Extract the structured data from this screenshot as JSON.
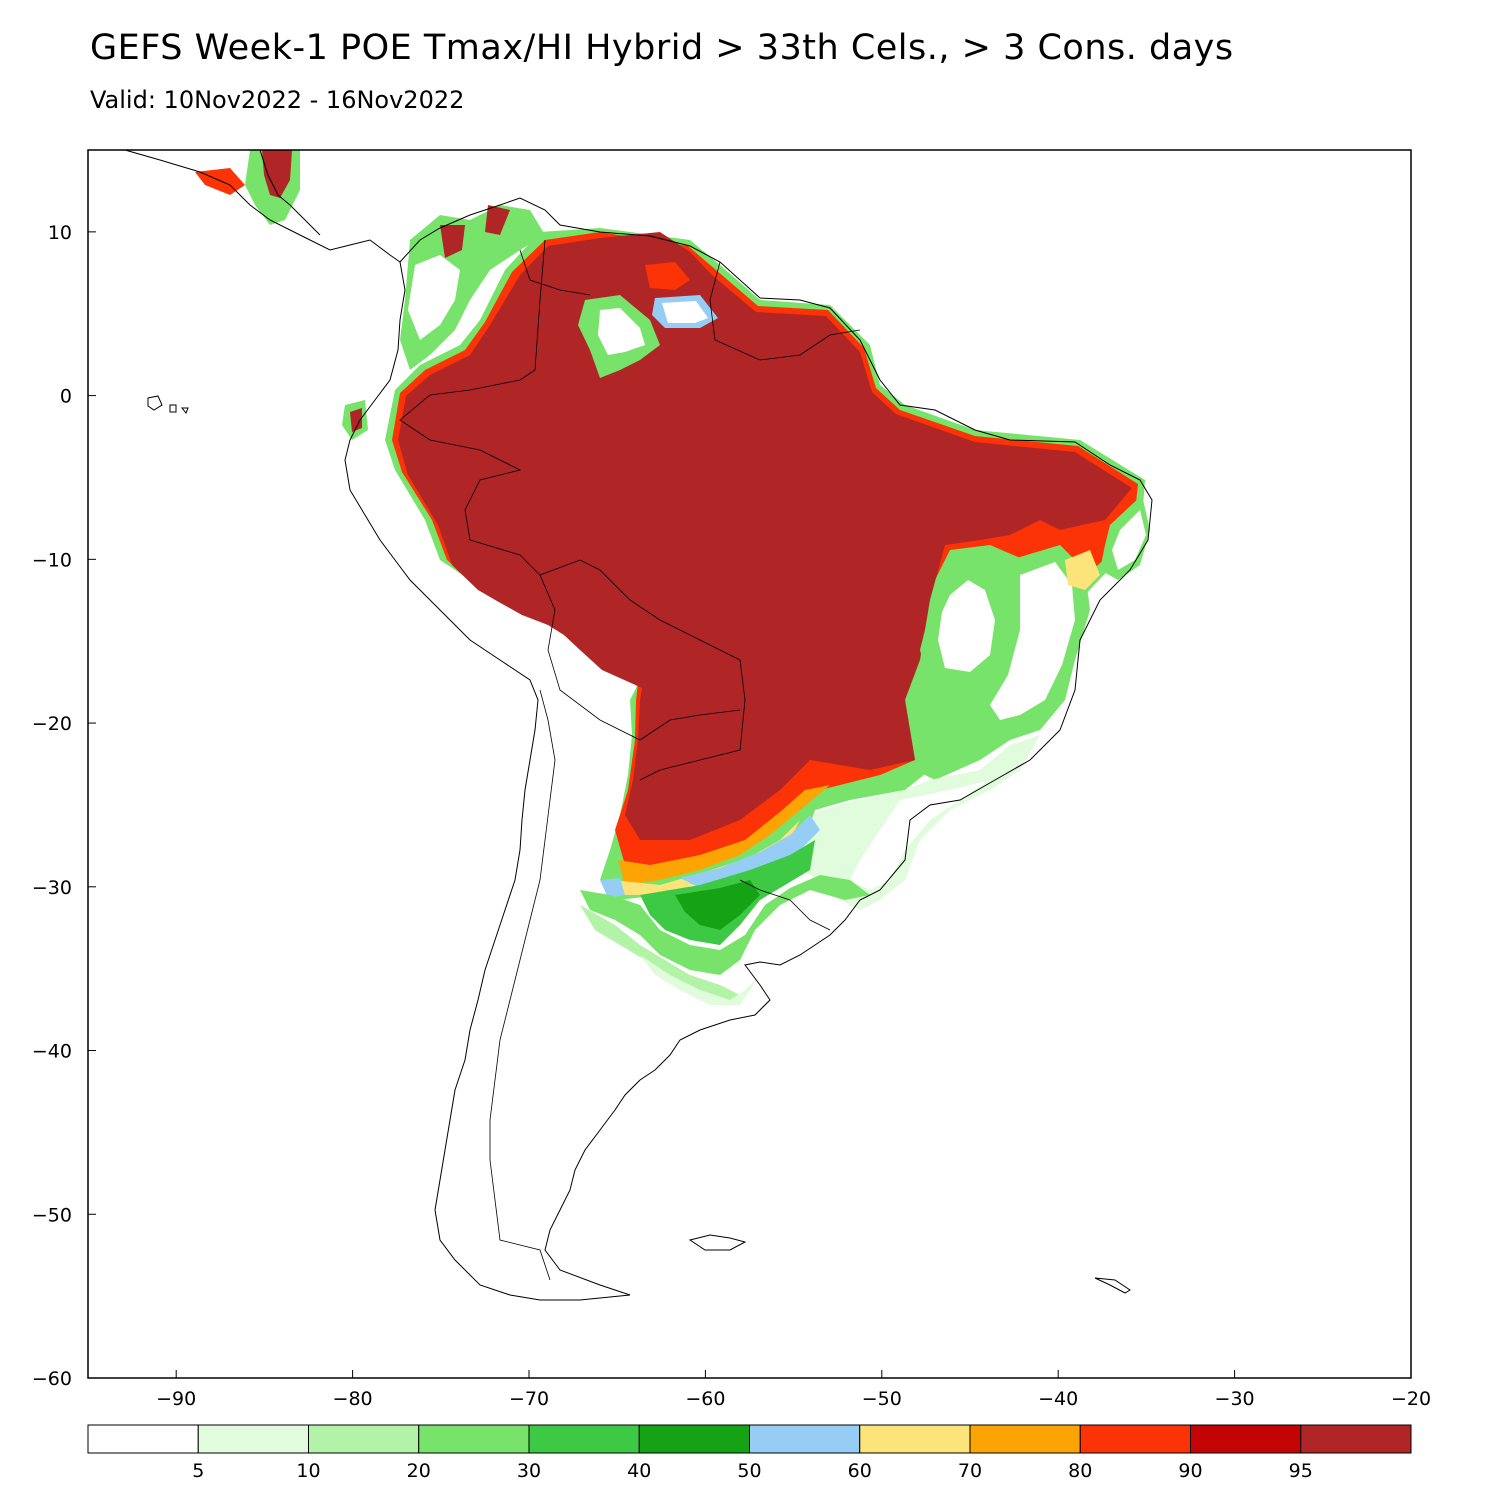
{
  "title": "GEFS Week-1 POE Tmax/HI Hybrid > 33th Cels., > 3 Cons. days",
  "subtitle": "Valid: 10Nov2022 - 16Nov2022",
  "axes": {
    "x_ticks": [
      "-90",
      "-80",
      "-70",
      "-60",
      "-50",
      "-40",
      "-30",
      "-20"
    ],
    "x_values": [
      -90,
      -80,
      -70,
      -60,
      -50,
      -40,
      -30,
      -20
    ],
    "y_ticks": [
      "10",
      "0",
      "-10",
      "-20",
      "-30",
      "-40",
      "-50",
      "-60"
    ],
    "y_values": [
      10,
      0,
      -10,
      -20,
      -30,
      -40,
      -50,
      -60
    ],
    "lon_range": [
      -95,
      -20
    ],
    "lat_range": [
      -60,
      15
    ]
  },
  "colorbar": {
    "colors": [
      "#ffffff",
      "#e0fcdc",
      "#b2f3a8",
      "#78e36a",
      "#3dc943",
      "#15a315",
      "#96cdf5",
      "#fce37a",
      "#fca404",
      "#fc3306",
      "#c40404",
      "#b02626"
    ],
    "labels": [
      "5",
      "10",
      "20",
      "30",
      "40",
      "50",
      "60",
      "70",
      "80",
      "90",
      "95"
    ]
  }
}
